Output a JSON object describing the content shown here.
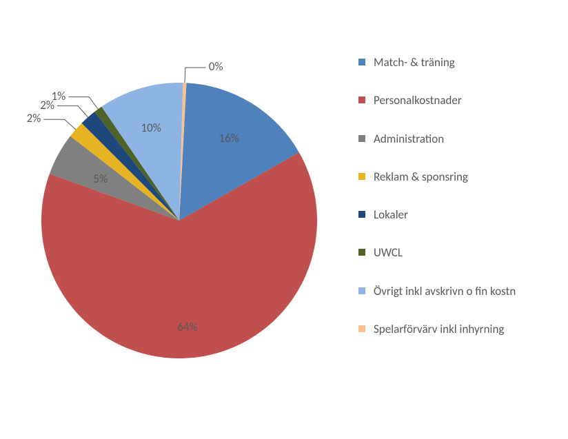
{
  "chart": {
    "type": "pie",
    "background_color": "#ffffff",
    "label_font_size": 17,
    "label_color": "#595959",
    "legend_font_size": 17,
    "legend_text_color": "#595959",
    "pie_radius": 200,
    "start_angle_deg": 3,
    "slices": [
      {
        "label": "Match- & träning",
        "value": 16,
        "pct_label": "16%",
        "color": "#4f81bd"
      },
      {
        "label": "Personalkostnader",
        "value": 64,
        "pct_label": "64%",
        "color": "#c0504d"
      },
      {
        "label": "Administration",
        "value": 5,
        "pct_label": "5%",
        "color": "#808080"
      },
      {
        "label": "Reklam & sponsring",
        "value": 2,
        "pct_label": "2%",
        "color": "#e6b422"
      },
      {
        "label": "Lokaler",
        "value": 2,
        "pct_label": "2%",
        "color": "#1f497d"
      },
      {
        "label": "UWCL",
        "value": 1,
        "pct_label": "1%",
        "color": "#4f6228"
      },
      {
        "label": "Övrigt inkl avskrivn o fin kostn",
        "value": 10,
        "pct_label": "10%",
        "color": "#8eb4e3"
      },
      {
        "label": "Spelarförvärv inkl inhyrning",
        "value": 0.4,
        "pct_label": "0%",
        "color": "#fac090"
      }
    ],
    "callouts": {
      "enabled_for_indices": [
        3,
        4,
        5,
        7
      ],
      "leader_color": "#595959"
    }
  }
}
